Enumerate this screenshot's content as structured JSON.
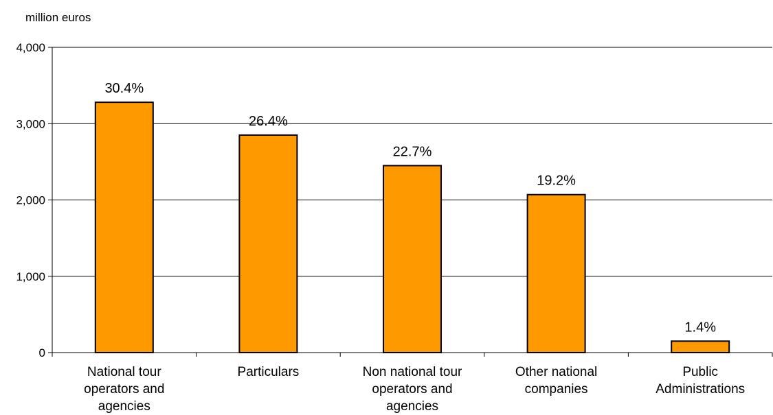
{
  "chart_data": {
    "type": "bar",
    "title": "",
    "unit_label": "million euros",
    "xlabel": "",
    "ylabel": "",
    "ylim": [
      0,
      4000
    ],
    "yticks": [
      0,
      1000,
      2000,
      3000,
      4000
    ],
    "ytick_labels": [
      "0",
      "1,000",
      "2,000",
      "3,000",
      "4,000"
    ],
    "grid": true,
    "bar_color": "#FF9900",
    "categories": [
      "National tour operators and agencies",
      "Particulars",
      "Non national tour operators and agencies",
      "Other national companies",
      "Public Administrations"
    ],
    "category_lines": [
      [
        "National tour",
        "operators and",
        "agencies"
      ],
      [
        "Particulars"
      ],
      [
        "Non national tour",
        "operators and",
        "agencies"
      ],
      [
        "Other national",
        "companies"
      ],
      [
        "Public",
        "Administrations"
      ]
    ],
    "values": [
      3280,
      2850,
      2450,
      2070,
      150
    ],
    "data_labels": [
      "30.4%",
      "26.4%",
      "22.7%",
      "19.2%",
      "1.4%"
    ]
  }
}
